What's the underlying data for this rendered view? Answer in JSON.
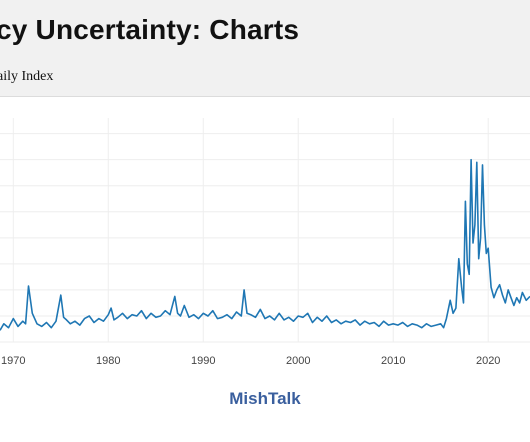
{
  "header": {
    "title": "cy Uncertainty: Charts",
    "subtitle": "aily Index"
  },
  "watermark": "MishTalk",
  "colors": {
    "line": "#1f77b4",
    "grid": "#eeeeee",
    "header_bg": "#f1f1f1",
    "watermark": "#3a5f9e"
  },
  "chart_data": {
    "type": "line",
    "title": "",
    "xlabel": "",
    "ylabel": "",
    "xlim": [
      1968.6,
      2024.4
    ],
    "ylim": [
      0,
      860
    ],
    "grid": true,
    "x_ticks": [
      "1970",
      "1980",
      "1990",
      "2000",
      "2010",
      "2020"
    ],
    "series": [
      {
        "color": "#1f77b4",
        "x": [
          1968.6,
          1969.0,
          1969.5,
          1970.0,
          1970.5,
          1971.0,
          1971.3,
          1971.6,
          1972.0,
          1972.5,
          1973.0,
          1973.5,
          1974.0,
          1974.5,
          1975.0,
          1975.3,
          1975.6,
          1976.0,
          1976.5,
          1977.0,
          1977.5,
          1978.0,
          1978.5,
          1979.0,
          1979.5,
          1980.0,
          1980.3,
          1980.6,
          1981.0,
          1981.5,
          1982.0,
          1982.5,
          1983.0,
          1983.5,
          1984.0,
          1984.5,
          1985.0,
          1985.5,
          1986.0,
          1986.5,
          1987.0,
          1987.3,
          1987.6,
          1988.0,
          1988.5,
          1989.0,
          1989.5,
          1990.0,
          1990.5,
          1991.0,
          1991.5,
          1992.0,
          1992.5,
          1993.0,
          1993.5,
          1994.0,
          1994.3,
          1994.6,
          1995.0,
          1995.5,
          1996.0,
          1996.5,
          1997.0,
          1997.5,
          1998.0,
          1998.5,
          1999.0,
          1999.5,
          2000.0,
          2000.5,
          2001.0,
          2001.5,
          2002.0,
          2002.5,
          2003.0,
          2003.5,
          2004.0,
          2004.5,
          2005.0,
          2005.5,
          2006.0,
          2006.5,
          2007.0,
          2007.5,
          2008.0,
          2008.5,
          2009.0,
          2009.5,
          2010.0,
          2010.5,
          2011.0,
          2011.5,
          2012.0,
          2012.5,
          2013.0,
          2013.5,
          2014.0,
          2014.5,
          2015.0,
          2015.3,
          2015.6,
          2016.0,
          2016.3,
          2016.6,
          2016.9,
          2017.2,
          2017.4,
          2017.6,
          2017.8,
          2018.0,
          2018.2,
          2018.4,
          2018.6,
          2018.8,
          2019.0,
          2019.2,
          2019.4,
          2019.6,
          2019.8,
          2020.0,
          2020.3,
          2020.6,
          2020.9,
          2021.2,
          2021.5,
          2021.8,
          2022.1,
          2022.4,
          2022.7,
          2023.0,
          2023.3,
          2023.6,
          2024.0,
          2024.4
        ],
        "values": [
          45,
          70,
          55,
          90,
          60,
          80,
          70,
          215,
          110,
          70,
          60,
          75,
          55,
          80,
          180,
          95,
          85,
          70,
          80,
          65,
          90,
          100,
          75,
          90,
          80,
          105,
          130,
          85,
          95,
          110,
          90,
          105,
          100,
          120,
          90,
          110,
          95,
          100,
          120,
          105,
          175,
          110,
          100,
          140,
          95,
          105,
          90,
          110,
          100,
          120,
          90,
          95,
          105,
          90,
          115,
          100,
          200,
          110,
          105,
          95,
          125,
          90,
          100,
          85,
          110,
          85,
          95,
          80,
          100,
          95,
          110,
          75,
          95,
          80,
          100,
          75,
          85,
          70,
          80,
          75,
          85,
          65,
          80,
          70,
          75,
          60,
          80,
          65,
          70,
          65,
          75,
          60,
          70,
          65,
          55,
          70,
          60,
          65,
          70,
          55,
          90,
          160,
          110,
          130,
          320,
          210,
          150,
          540,
          300,
          260,
          700,
          380,
          450,
          690,
          320,
          400,
          680,
          450,
          340,
          360,
          210,
          170,
          200,
          220,
          180,
          150,
          200,
          170,
          140,
          170,
          150,
          190,
          160,
          175
        ]
      }
    ]
  }
}
